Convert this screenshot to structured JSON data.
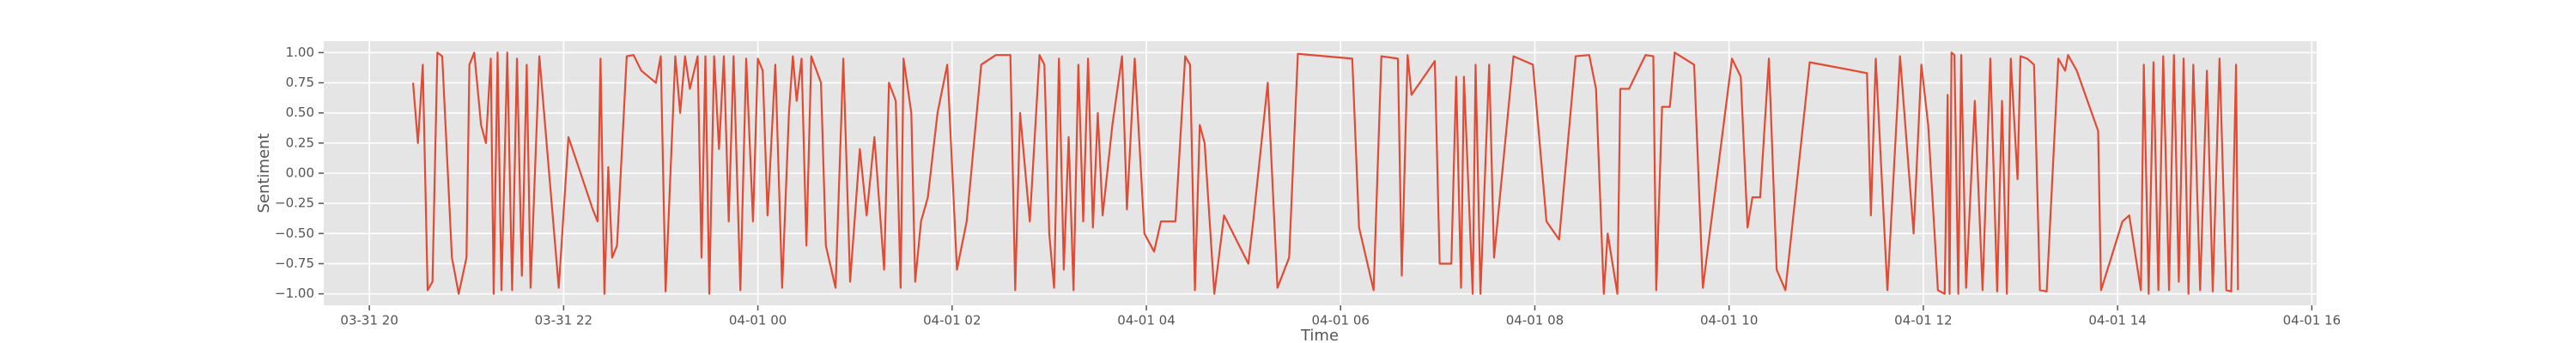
{
  "chart_data": {
    "type": "line",
    "x_label": "Time",
    "y_label": "Sentiment",
    "color": "#E24A33",
    "grid": true,
    "xlim": [
      19.53,
      40.05
    ],
    "ylim": [
      -1.095,
      1.095
    ],
    "xticks": [
      {
        "value": 20,
        "label": "03-31 20"
      },
      {
        "value": 22,
        "label": "03-31 22"
      },
      {
        "value": 24,
        "label": "04-01 00"
      },
      {
        "value": 26,
        "label": "04-01 02"
      },
      {
        "value": 28,
        "label": "04-01 04"
      },
      {
        "value": 30,
        "label": "04-01 06"
      },
      {
        "value": 32,
        "label": "04-01 08"
      },
      {
        "value": 34,
        "label": "04-01 10"
      },
      {
        "value": 36,
        "label": "04-01 12"
      },
      {
        "value": 38,
        "label": "04-01 14"
      },
      {
        "value": 40,
        "label": "04-01 16"
      }
    ],
    "yticks": [
      {
        "value": 1,
        "label": "1.00"
      },
      {
        "value": 0.75,
        "label": "0.75"
      },
      {
        "value": 0.5,
        "label": "0.50"
      },
      {
        "value": 0.25,
        "label": "0.25"
      },
      {
        "value": 0,
        "label": "0.00"
      },
      {
        "value": -0.25,
        "label": "−0.25"
      },
      {
        "value": -0.5,
        "label": "−0.50"
      },
      {
        "value": -0.75,
        "label": "−0.75"
      },
      {
        "value": -1,
        "label": "−1.00"
      }
    ],
    "x": [
      20.45,
      20.5,
      20.55,
      20.6,
      20.65,
      20.7,
      20.75,
      20.85,
      20.92,
      21.0,
      21.03,
      21.08,
      21.15,
      21.2,
      21.25,
      21.28,
      21.32,
      21.36,
      21.42,
      21.47,
      21.52,
      21.57,
      21.62,
      21.66,
      21.75,
      21.95,
      22.05,
      22.3,
      22.35,
      22.38,
      22.42,
      22.46,
      22.5,
      22.55,
      22.65,
      22.72,
      22.8,
      22.95,
      23.0,
      23.05,
      23.15,
      23.2,
      23.25,
      23.3,
      23.38,
      23.42,
      23.46,
      23.5,
      23.55,
      23.6,
      23.65,
      23.7,
      23.75,
      23.82,
      23.88,
      23.95,
      24.0,
      24.05,
      24.1,
      24.18,
      24.25,
      24.32,
      24.36,
      24.4,
      24.45,
      24.5,
      24.55,
      24.65,
      24.7,
      24.8,
      24.88,
      24.95,
      25.05,
      25.12,
      25.2,
      25.3,
      25.35,
      25.42,
      25.47,
      25.5,
      25.58,
      25.62,
      25.68,
      25.75,
      25.85,
      25.95,
      26.05,
      26.15,
      26.3,
      26.45,
      26.6,
      26.65,
      26.7,
      26.8,
      26.9,
      26.95,
      27.0,
      27.05,
      27.1,
      27.15,
      27.2,
      27.25,
      27.3,
      27.35,
      27.4,
      27.45,
      27.5,
      27.55,
      27.65,
      27.75,
      27.8,
      27.88,
      27.98,
      28.08,
      28.15,
      28.3,
      28.4,
      28.45,
      28.5,
      28.55,
      28.6,
      28.7,
      28.8,
      29.05,
      29.1,
      29.25,
      29.35,
      29.47,
      29.56,
      30.12,
      30.19,
      30.34,
      30.42,
      30.59,
      30.63,
      30.69,
      30.73,
      30.97,
      31.02,
      31.14,
      31.19,
      31.24,
      31.27,
      31.36,
      31.39,
      31.44,
      31.53,
      31.58,
      31.78,
      31.98,
      32.12,
      32.25,
      32.42,
      32.56,
      32.63,
      32.71,
      32.75,
      32.85,
      32.88,
      32.97,
      33.14,
      33.22,
      33.25,
      33.31,
      33.39,
      33.44,
      33.64,
      33.73,
      34.03,
      34.12,
      34.19,
      34.24,
      34.32,
      34.41,
      34.49,
      34.58,
      34.83,
      35.42,
      35.46,
      35.51,
      35.63,
      35.76,
      35.9,
      35.98,
      36.05,
      36.15,
      36.22,
      36.25,
      36.27,
      36.29,
      36.32,
      36.36,
      36.39,
      36.44,
      36.53,
      36.61,
      36.69,
      36.76,
      36.81,
      36.86,
      36.9,
      36.97,
      37.0,
      37.07,
      37.14,
      37.2,
      37.27,
      37.39,
      37.46,
      37.49,
      37.58,
      37.8,
      37.83,
      38.05,
      38.12,
      38.24,
      38.27,
      38.32,
      38.37,
      38.42,
      38.47,
      38.53,
      38.58,
      38.63,
      38.68,
      38.73,
      38.78,
      38.85,
      38.92,
      38.98,
      39.05,
      39.12,
      39.17,
      39.22,
      39.24
    ],
    "values": [
      0.75,
      0.25,
      0.9,
      -0.97,
      -0.9,
      1.0,
      0.97,
      -0.7,
      -1.0,
      -0.7,
      0.9,
      1.0,
      0.4,
      0.25,
      0.95,
      -1.0,
      1.0,
      -0.97,
      1.0,
      -0.97,
      0.95,
      -0.85,
      0.9,
      -0.95,
      0.97,
      -0.95,
      0.3,
      -0.3,
      -0.4,
      0.95,
      -1.0,
      0.05,
      -0.7,
      -0.6,
      0.97,
      0.98,
      0.85,
      0.75,
      0.97,
      -0.98,
      0.97,
      0.5,
      0.97,
      0.7,
      0.97,
      -0.7,
      0.97,
      -1.0,
      0.97,
      0.2,
      0.97,
      -0.4,
      0.97,
      -0.97,
      0.95,
      -0.4,
      0.95,
      0.85,
      -0.35,
      0.9,
      -0.95,
      0.5,
      0.97,
      0.6,
      0.95,
      -0.6,
      0.97,
      0.75,
      -0.6,
      -0.95,
      0.95,
      -0.9,
      0.2,
      -0.35,
      0.3,
      -0.8,
      0.75,
      0.6,
      -0.95,
      0.95,
      0.5,
      -0.9,
      -0.4,
      -0.2,
      0.5,
      0.9,
      -0.8,
      -0.4,
      0.9,
      0.98,
      0.98,
      -0.97,
      0.5,
      -0.4,
      0.98,
      0.9,
      -0.5,
      -0.95,
      0.95,
      -0.8,
      0.3,
      -0.97,
      0.9,
      -0.4,
      0.95,
      -0.45,
      0.5,
      -0.35,
      0.4,
      0.97,
      -0.3,
      0.95,
      -0.5,
      -0.65,
      -0.4,
      -0.4,
      0.97,
      0.9,
      -0.97,
      0.4,
      0.25,
      -1.0,
      -0.35,
      -0.75,
      -0.4,
      0.75,
      -0.95,
      -0.7,
      0.99,
      0.95,
      -0.45,
      -0.97,
      0.97,
      0.95,
      -0.85,
      0.98,
      0.65,
      0.93,
      -0.75,
      -0.75,
      0.8,
      -0.95,
      0.8,
      -1.0,
      0.9,
      -1.0,
      0.9,
      -0.7,
      0.97,
      0.9,
      -0.4,
      -0.55,
      0.97,
      0.98,
      0.7,
      -1.0,
      -0.5,
      -1.0,
      0.7,
      0.7,
      0.98,
      0.97,
      -0.97,
      0.55,
      0.55,
      1.0,
      0.9,
      -0.95,
      0.95,
      0.8,
      -0.45,
      -0.2,
      -0.2,
      0.95,
      -0.8,
      -0.97,
      0.92,
      0.83,
      -0.35,
      0.95,
      -0.97,
      0.97,
      -0.5,
      0.9,
      0.4,
      -0.97,
      -1.0,
      0.65,
      -1.0,
      1.0,
      0.98,
      -1.0,
      0.98,
      -0.95,
      0.6,
      -0.97,
      0.95,
      -0.98,
      0.6,
      -1.0,
      0.95,
      -0.05,
      0.97,
      0.95,
      0.9,
      -0.97,
      -0.98,
      0.95,
      0.85,
      0.98,
      0.85,
      0.35,
      -0.97,
      -0.4,
      -0.35,
      -0.97,
      0.9,
      -1.0,
      0.92,
      -0.97,
      0.97,
      -0.97,
      0.98,
      -0.9,
      0.95,
      -1.0,
      0.9,
      -0.97,
      0.85,
      -0.98,
      0.95,
      -0.97,
      -0.98,
      0.9,
      -0.97
    ]
  }
}
